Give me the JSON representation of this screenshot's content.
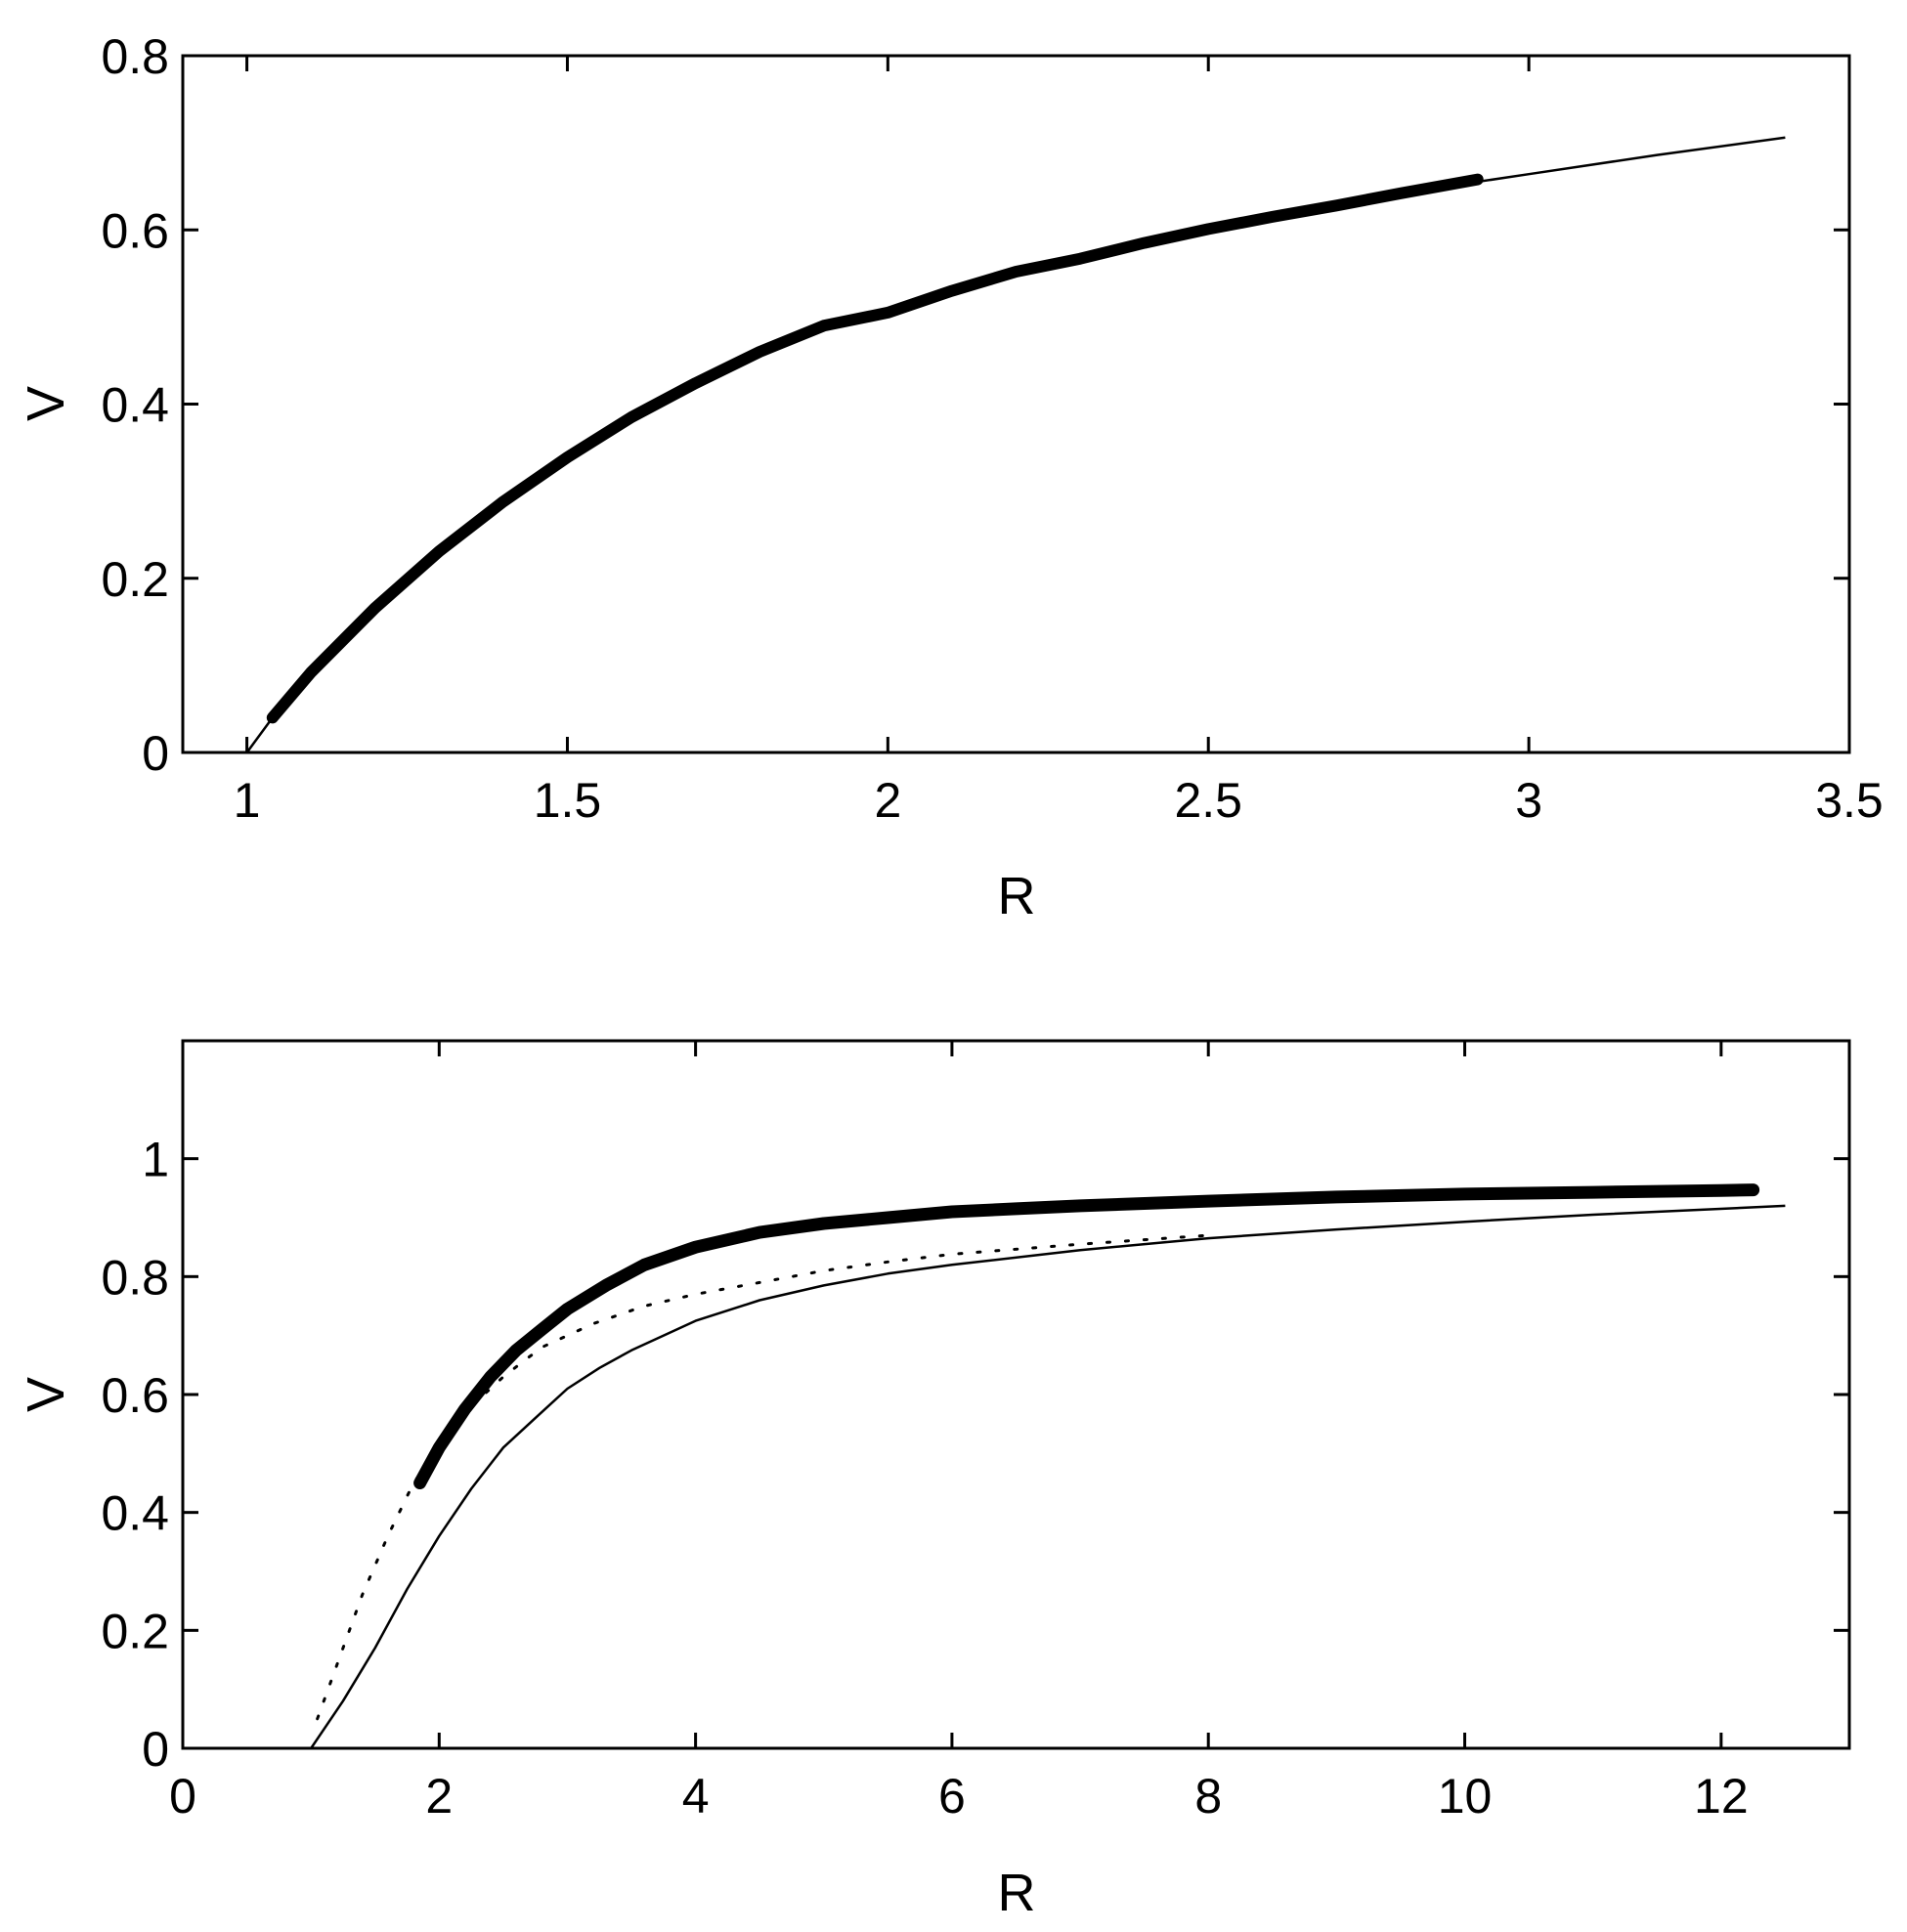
{
  "chart_data": [
    {
      "type": "line",
      "xlabel": "R",
      "ylabel": "V",
      "xlim": [
        0.9,
        3.5
      ],
      "ylim": [
        0,
        0.8
      ],
      "xticks": [
        1,
        1.5,
        2,
        2.5,
        3,
        3.5
      ],
      "xtick_labels": [
        "1",
        "1.5",
        "2",
        "2.5",
        "3",
        "3.5"
      ],
      "yticks": [
        0,
        0.2,
        0.4,
        0.6,
        0.8
      ],
      "ytick_labels": [
        "0",
        "0.2",
        "0.4",
        "0.6",
        "0.8"
      ],
      "grid": false,
      "series": [
        {
          "style": "thick",
          "x": [
            1.04,
            1.1,
            1.2,
            1.3,
            1.4,
            1.5,
            1.6,
            1.7,
            1.8,
            1.9,
            2.0,
            2.1,
            2.2,
            2.3,
            2.4,
            2.5,
            2.6,
            2.7,
            2.8,
            2.92
          ],
          "y": [
            0.04,
            0.092,
            0.166,
            0.231,
            0.288,
            0.339,
            0.385,
            0.424,
            0.46,
            0.49,
            0.505,
            0.53,
            0.552,
            0.567,
            0.585,
            0.601,
            0.615,
            0.628,
            0.642,
            0.658
          ]
        },
        {
          "style": "solid",
          "x": [
            1.0,
            1.04,
            1.1,
            1.2,
            1.3,
            1.4,
            1.5,
            1.6,
            1.7,
            1.8,
            1.9,
            2.0,
            2.2,
            2.4,
            2.6,
            2.8,
            3.0,
            3.2,
            3.4
          ],
          "y": [
            0.0,
            0.04,
            0.092,
            0.166,
            0.231,
            0.288,
            0.339,
            0.385,
            0.424,
            0.46,
            0.49,
            0.505,
            0.552,
            0.585,
            0.615,
            0.642,
            0.664,
            0.686,
            0.706
          ]
        }
      ]
    },
    {
      "type": "line",
      "xlabel": "R",
      "ylabel": "V",
      "xlim": [
        0,
        13
      ],
      "ylim": [
        0,
        1.2
      ],
      "xticks": [
        0,
        2,
        4,
        6,
        8,
        10,
        12
      ],
      "xtick_labels": [
        "0",
        "2",
        "4",
        "6",
        "8",
        "10",
        "12"
      ],
      "yticks": [
        0,
        0.2,
        0.4,
        0.6,
        0.8,
        1.0
      ],
      "ytick_labels": [
        "0",
        "0.2",
        "0.4",
        "0.6",
        "0.8",
        "1"
      ],
      "grid": false,
      "series": [
        {
          "style": "thick",
          "x": [
            1.85,
            2.0,
            2.2,
            2.4,
            2.6,
            2.8,
            3.0,
            3.3,
            3.6,
            4.0,
            4.5,
            5.0,
            5.5,
            6.0,
            6.5,
            7.0,
            8.0,
            9.0,
            10.0,
            11.0,
            12.0,
            12.25
          ],
          "y": [
            0.45,
            0.51,
            0.575,
            0.63,
            0.675,
            0.71,
            0.745,
            0.785,
            0.82,
            0.85,
            0.875,
            0.89,
            0.9,
            0.91,
            0.915,
            0.92,
            0.928,
            0.935,
            0.94,
            0.943,
            0.946,
            0.947
          ]
        },
        {
          "style": "dotted",
          "x": [
            1.05,
            1.2,
            1.4,
            1.6,
            1.8,
            2.0,
            2.2,
            2.5,
            2.8,
            3.2,
            3.6,
            4.0,
            4.5,
            5.0,
            5.5,
            6.0,
            7.0,
            8.0
          ],
          "y": [
            0.05,
            0.14,
            0.26,
            0.36,
            0.45,
            0.51,
            0.57,
            0.63,
            0.68,
            0.72,
            0.75,
            0.77,
            0.79,
            0.81,
            0.825,
            0.838,
            0.855,
            0.87
          ]
        },
        {
          "style": "solid",
          "x": [
            1.0,
            1.25,
            1.5,
            1.75,
            2.0,
            2.25,
            2.5,
            2.75,
            3.0,
            3.25,
            3.5,
            4.0,
            4.5,
            5.0,
            5.5,
            6.0,
            7.0,
            8.0,
            9.0,
            10.0,
            11.0,
            12.5
          ],
          "y": [
            0.0,
            0.08,
            0.17,
            0.27,
            0.36,
            0.44,
            0.51,
            0.56,
            0.61,
            0.645,
            0.675,
            0.725,
            0.76,
            0.785,
            0.805,
            0.82,
            0.845,
            0.865,
            0.88,
            0.893,
            0.905,
            0.92
          ]
        }
      ]
    }
  ]
}
